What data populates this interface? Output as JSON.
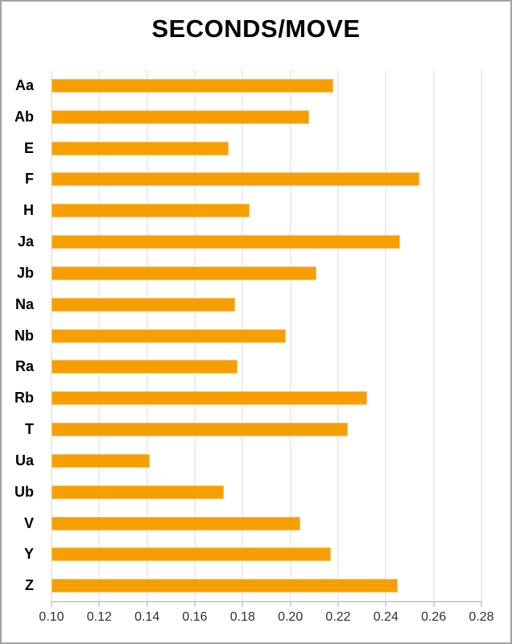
{
  "title": "SECONDS/MOVE",
  "colors": {
    "bar_fill": "#F79F00",
    "bar_border": "#FBC16D",
    "gridline": "#D9D9D9",
    "axis_line": "#ADADAD",
    "frame_border": "#A3A3A3",
    "tick_label": "#303030",
    "title_color": "#000000"
  },
  "chart_data": {
    "type": "bar",
    "orientation": "horizontal",
    "title": "SECONDS/MOVE",
    "categories": [
      "Aa",
      "Ab",
      "E",
      "F",
      "H",
      "Ja",
      "Jb",
      "Na",
      "Nb",
      "Ra",
      "Rb",
      "T",
      "Ua",
      "Ub",
      "V",
      "Y",
      "Z"
    ],
    "values": [
      0.218,
      0.208,
      0.174,
      0.254,
      0.183,
      0.246,
      0.211,
      0.177,
      0.198,
      0.178,
      0.232,
      0.224,
      0.141,
      0.172,
      0.204,
      0.217,
      0.245
    ],
    "xlabel": "",
    "ylabel": "",
    "xlim": [
      0.1,
      0.28
    ],
    "xticks": [
      "0.10",
      "0.12",
      "0.14",
      "0.16",
      "0.18",
      "0.20",
      "0.22",
      "0.24",
      "0.26",
      "0.28"
    ],
    "grid": "vertical-solid",
    "legend": "none",
    "bar_color": "#F79F00"
  }
}
